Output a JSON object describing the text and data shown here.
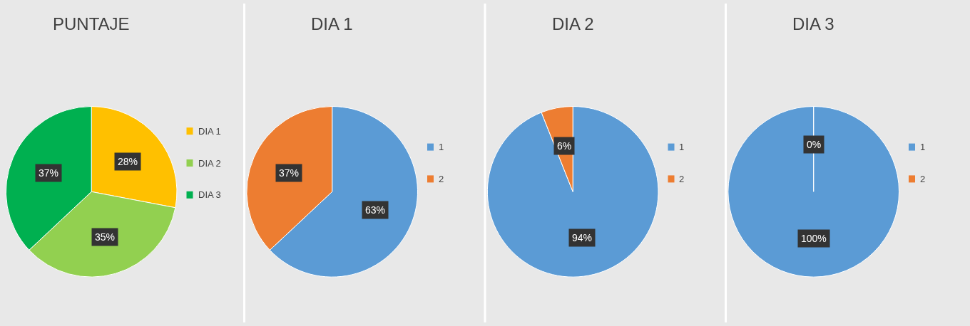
{
  "chart_data": [
    {
      "type": "pie",
      "title": "PUNTAJE",
      "categories": [
        "DIA 1",
        "DIA 2",
        "DIA 3"
      ],
      "values": [
        28,
        35,
        37
      ],
      "colors": [
        "#ffc000",
        "#92d050",
        "#00b050"
      ],
      "value_labels": [
        "28%",
        "35%",
        "37%"
      ],
      "legend": "right"
    },
    {
      "type": "pie",
      "title": "DIA 1",
      "categories": [
        "1",
        "2"
      ],
      "values": [
        63,
        37
      ],
      "colors": [
        "#5b9bd5",
        "#ed7d31"
      ],
      "value_labels": [
        "63%",
        "37%"
      ],
      "legend": "right"
    },
    {
      "type": "pie",
      "title": "DIA 2",
      "categories": [
        "1",
        "2"
      ],
      "values": [
        94,
        6
      ],
      "colors": [
        "#5b9bd5",
        "#ed7d31"
      ],
      "value_labels": [
        "94%",
        "6%"
      ],
      "legend": "right"
    },
    {
      "type": "pie",
      "title": "DIA 3",
      "categories": [
        "1",
        "2"
      ],
      "values": [
        100,
        0
      ],
      "colors": [
        "#5b9bd5",
        "#ed7d31"
      ],
      "value_labels": [
        "100%",
        "0%"
      ],
      "legend": "right"
    }
  ]
}
